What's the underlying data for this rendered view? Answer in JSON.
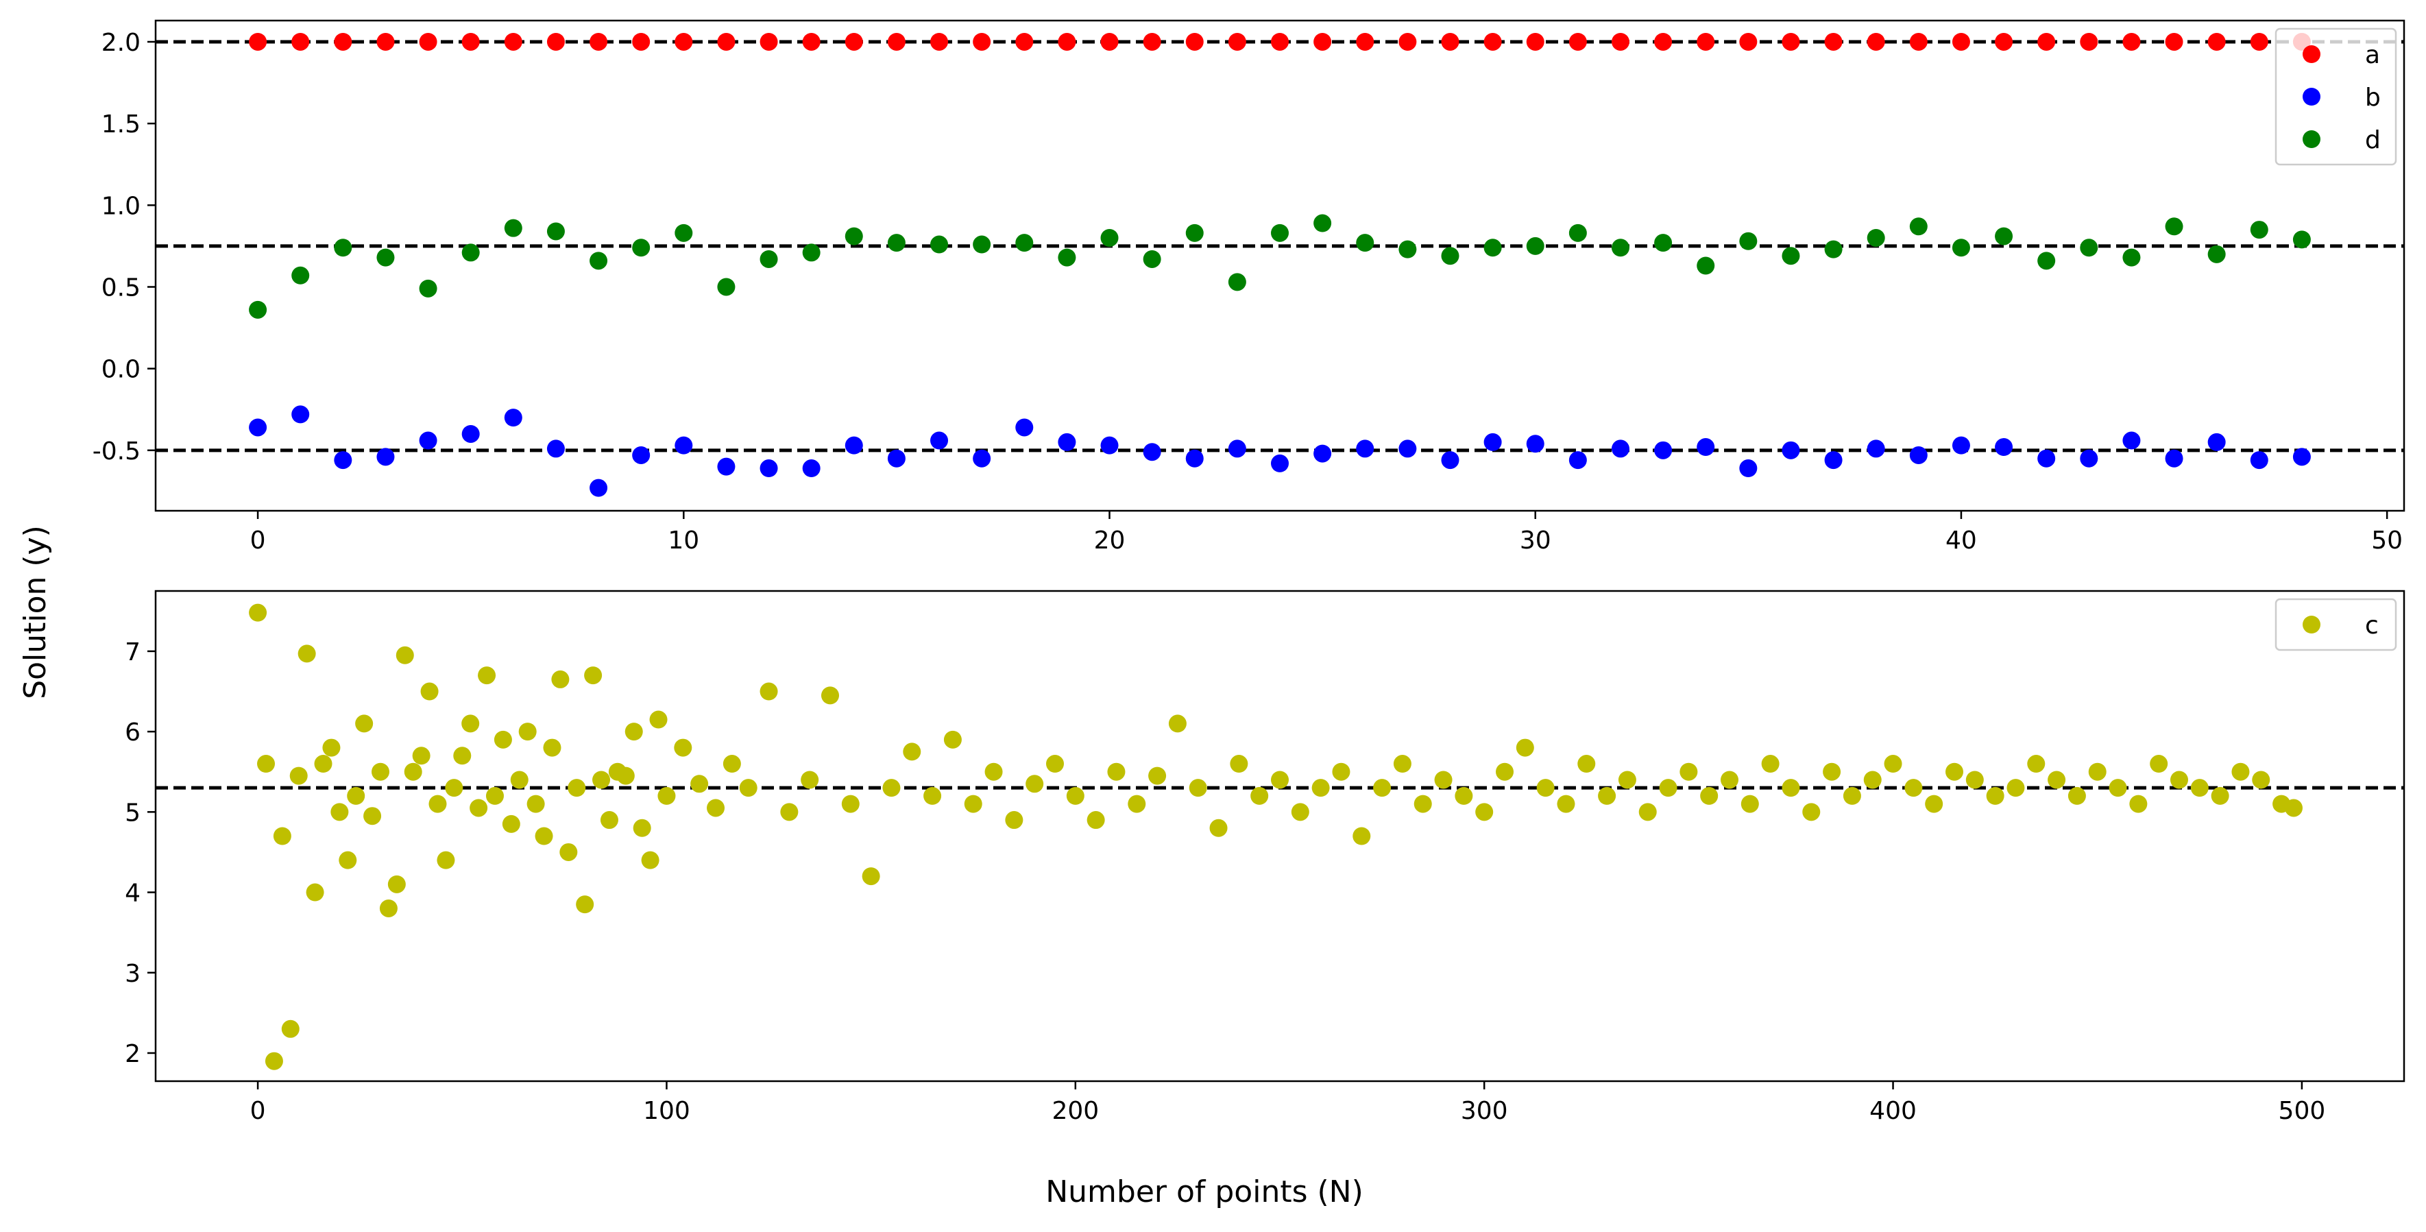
{
  "figure": {
    "xlabel": "Number of points (N)",
    "ylabel": "Solution (y)"
  },
  "chart_data": [
    {
      "type": "scatter",
      "title": "",
      "xlabel": "",
      "ylabel": "",
      "xlim": [
        -2.4,
        50.4
      ],
      "ylim": [
        -0.87,
        2.13
      ],
      "xticks": [
        0,
        10,
        20,
        30,
        40,
        50
      ],
      "yticks": [
        -0.5,
        0.0,
        0.5,
        1.0,
        1.5,
        2.0
      ],
      "ytick_labels": [
        "-0.5",
        "0.0",
        "0.5",
        "1.0",
        "1.5",
        "2.0"
      ],
      "legend_position": "top-right",
      "reference_lines": [
        2.0,
        0.75,
        -0.5
      ],
      "series": [
        {
          "name": "a",
          "color": "#ff0000",
          "x": [
            0,
            1,
            2,
            3,
            4,
            5,
            6,
            7,
            8,
            9,
            10,
            11,
            12,
            13,
            14,
            15,
            16,
            17,
            18,
            19,
            20,
            21,
            22,
            23,
            24,
            25,
            26,
            27,
            28,
            29,
            30,
            31,
            32,
            33,
            34,
            35,
            36,
            37,
            38,
            39,
            40,
            41,
            42,
            43,
            44,
            45,
            46,
            47,
            48
          ],
          "y": [
            2,
            2,
            2,
            2,
            2,
            2,
            2,
            2,
            2,
            2,
            2,
            2,
            2,
            2,
            2,
            2,
            2,
            2,
            2,
            2,
            2,
            2,
            2,
            2,
            2,
            2,
            2,
            2,
            2,
            2,
            2,
            2,
            2,
            2,
            2,
            2,
            2,
            2,
            2,
            2,
            2,
            2,
            2,
            2,
            2,
            2,
            2,
            2,
            2
          ]
        },
        {
          "name": "b",
          "color": "#0000ff",
          "x": [
            0,
            1,
            2,
            3,
            4,
            5,
            6,
            7,
            8,
            9,
            10,
            11,
            12,
            13,
            14,
            15,
            16,
            17,
            18,
            19,
            20,
            21,
            22,
            23,
            24,
            25,
            26,
            27,
            28,
            29,
            30,
            31,
            32,
            33,
            34,
            35,
            36,
            37,
            38,
            39,
            40,
            41,
            42,
            43,
            44,
            45,
            46,
            47,
            48
          ],
          "y": [
            -0.36,
            -0.28,
            -0.56,
            -0.54,
            -0.44,
            -0.4,
            -0.3,
            -0.49,
            -0.73,
            -0.53,
            -0.47,
            -0.6,
            -0.61,
            -0.61,
            -0.47,
            -0.55,
            -0.44,
            -0.55,
            -0.36,
            -0.45,
            -0.47,
            -0.51,
            -0.55,
            -0.49,
            -0.58,
            -0.52,
            -0.49,
            -0.49,
            -0.56,
            -0.45,
            -0.46,
            -0.56,
            -0.49,
            -0.5,
            -0.48,
            -0.61,
            -0.5,
            -0.56,
            -0.49,
            -0.53,
            -0.47,
            -0.48,
            -0.55,
            -0.55,
            -0.44,
            -0.55,
            -0.45,
            -0.56,
            -0.54
          ]
        },
        {
          "name": "d",
          "color": "#008000",
          "x": [
            0,
            1,
            2,
            3,
            4,
            5,
            6,
            7,
            8,
            9,
            10,
            11,
            12,
            13,
            14,
            15,
            16,
            17,
            18,
            19,
            20,
            21,
            22,
            23,
            24,
            25,
            26,
            27,
            28,
            29,
            30,
            31,
            32,
            33,
            34,
            35,
            36,
            37,
            38,
            39,
            40,
            41,
            42,
            43,
            44,
            45,
            46,
            47,
            48
          ],
          "y": [
            0.36,
            0.57,
            0.74,
            0.68,
            0.49,
            0.71,
            0.86,
            0.84,
            0.66,
            0.74,
            0.83,
            0.5,
            0.67,
            0.71,
            0.81,
            0.77,
            0.76,
            0.76,
            0.77,
            0.68,
            0.8,
            0.67,
            0.83,
            0.53,
            0.83,
            0.89,
            0.77,
            0.73,
            0.69,
            0.74,
            0.75,
            0.83,
            0.74,
            0.77,
            0.63,
            0.78,
            0.69,
            0.73,
            0.8,
            0.87,
            0.74,
            0.81,
            0.66,
            0.74,
            0.68,
            0.87,
            0.7,
            0.85,
            0.79
          ]
        }
      ]
    },
    {
      "type": "scatter",
      "title": "",
      "xlabel": "",
      "ylabel": "",
      "xlim": [
        -25,
        525
      ],
      "ylim": [
        1.65,
        7.75
      ],
      "xticks": [
        0,
        100,
        200,
        300,
        400,
        500
      ],
      "yticks": [
        2,
        3,
        4,
        5,
        6,
        7
      ],
      "ytick_labels": [
        "2",
        "3",
        "4",
        "5",
        "6",
        "7"
      ],
      "legend_position": "top-right",
      "reference_lines": [
        5.3
      ],
      "series": [
        {
          "name": "c",
          "color": "#bfbf00",
          "x": [
            0,
            2,
            4,
            6,
            8,
            10,
            12,
            14,
            16,
            18,
            20,
            22,
            24,
            26,
            28,
            30,
            32,
            34,
            36,
            38,
            40,
            42,
            44,
            46,
            48,
            50,
            52,
            54,
            56,
            58,
            60,
            62,
            64,
            66,
            68,
            70,
            72,
            74,
            76,
            78,
            80,
            82,
            84,
            86,
            88,
            90,
            92,
            94,
            96,
            98,
            100,
            104,
            108,
            112,
            116,
            120,
            125,
            130,
            135,
            140,
            145,
            150,
            155,
            160,
            165,
            170,
            175,
            180,
            185,
            190,
            195,
            200,
            205,
            210,
            215,
            220,
            225,
            230,
            235,
            240,
            245,
            250,
            255,
            260,
            265,
            270,
            275,
            280,
            285,
            290,
            295,
            300,
            305,
            310,
            315,
            320,
            325,
            330,
            335,
            340,
            345,
            350,
            355,
            360,
            365,
            370,
            375,
            380,
            385,
            390,
            395,
            400,
            405,
            410,
            415,
            420,
            425,
            430,
            435,
            440,
            445,
            450,
            455,
            460,
            465,
            470,
            475,
            480,
            485,
            490,
            495,
            498
          ],
          "y": [
            7.48,
            5.6,
            1.9,
            4.7,
            2.3,
            5.45,
            6.97,
            4.0,
            5.6,
            5.8,
            5.0,
            4.4,
            5.2,
            6.1,
            4.95,
            5.5,
            3.8,
            4.1,
            6.95,
            5.5,
            5.7,
            6.5,
            5.1,
            4.4,
            5.3,
            5.7,
            6.1,
            5.05,
            6.7,
            5.2,
            5.9,
            4.85,
            5.4,
            6.0,
            5.1,
            4.7,
            5.8,
            6.65,
            4.5,
            5.3,
            3.85,
            6.7,
            5.4,
            4.9,
            5.5,
            5.45,
            6.0,
            4.8,
            4.4,
            6.15,
            5.2,
            5.8,
            5.35,
            5.05,
            5.6,
            5.3,
            6.5,
            5.0,
            5.4,
            6.45,
            5.1,
            4.2,
            5.3,
            5.75,
            5.2,
            5.9,
            5.1,
            5.5,
            4.9,
            5.35,
            5.6,
            5.2,
            4.9,
            5.5,
            5.1,
            5.45,
            6.1,
            5.3,
            4.8,
            5.6,
            5.2,
            5.4,
            5.0,
            5.3,
            5.5,
            4.7,
            5.3,
            5.6,
            5.1,
            5.4,
            5.2,
            5.0,
            5.5,
            5.8,
            5.3,
            5.1,
            5.6,
            5.2,
            5.4,
            5.0,
            5.3,
            5.5,
            5.2,
            5.4,
            5.1,
            5.6,
            5.3,
            5.0,
            5.5,
            5.2,
            5.4,
            5.6,
            5.3,
            5.1,
            5.5,
            5.4,
            5.2,
            5.3,
            5.6,
            5.4,
            5.2,
            5.5,
            5.3,
            5.1,
            5.6,
            5.4,
            5.3,
            5.2,
            5.5,
            5.4,
            5.1,
            5.05
          ]
        }
      ]
    }
  ]
}
